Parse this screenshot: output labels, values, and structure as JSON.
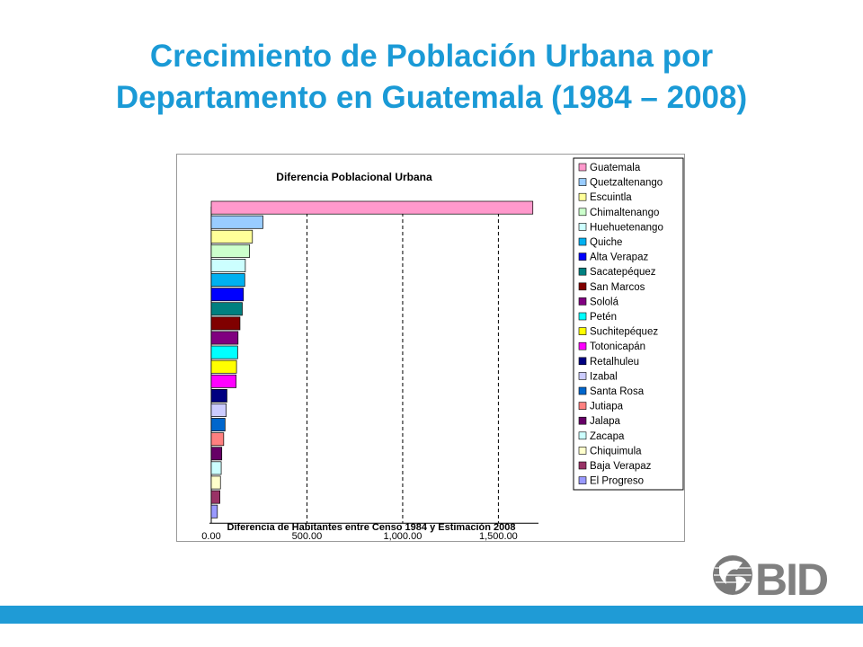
{
  "slide": {
    "title_line1": "Crecimiento de Población Urbana por",
    "title_line2": "Departamento en Guatemala (1984 – 2008)"
  },
  "logo": {
    "text": "BID"
  },
  "chart_data": {
    "type": "bar",
    "orientation": "horizontal",
    "title": "Diferencia Poblacional Urbana",
    "xlabel": "Diferencia de Habitantes entre Censo 1984 y Estimación 2008",
    "ylabel": "",
    "xlim": [
      0,
      1700
    ],
    "x_ticks": [
      0,
      500,
      1000,
      1500
    ],
    "x_tick_labels": [
      "0.00",
      "500.00",
      "1,000.00",
      "1,500.00"
    ],
    "grid": "vertical dashed",
    "legend_position": "right",
    "categories": [
      "Guatemala",
      "Quetzaltenango",
      "Escuintla",
      "Chimaltenango",
      "Huehuetenango",
      "Quiche",
      "Alta Verapaz",
      "Sacatepéquez",
      "San Marcos",
      "Sololá",
      "Petén",
      "Suchitepéquez",
      "Totonicapán",
      "Retalhuleu",
      "Izabal",
      "Santa Rosa",
      "Jutiapa",
      "Jalapa",
      "Zacapa",
      "Chiquimula",
      "Baja Verapaz",
      "El Progreso"
    ],
    "values": [
      1680,
      270,
      215,
      200,
      178,
      175,
      168,
      162,
      150,
      140,
      138,
      132,
      130,
      82,
      78,
      72,
      65,
      55,
      52,
      48,
      45,
      32
    ],
    "colors": [
      "#ff99cc",
      "#99ccff",
      "#ffff99",
      "#ccffcc",
      "#ccffff",
      "#00b0f0",
      "#0000ff",
      "#008080",
      "#800000",
      "#800080",
      "#00ffff",
      "#ffff00",
      "#ff00ff",
      "#000080",
      "#ccccff",
      "#0066cc",
      "#ff8080",
      "#660066",
      "#ccffff",
      "#ffffcc",
      "#993366",
      "#9999ff"
    ]
  }
}
